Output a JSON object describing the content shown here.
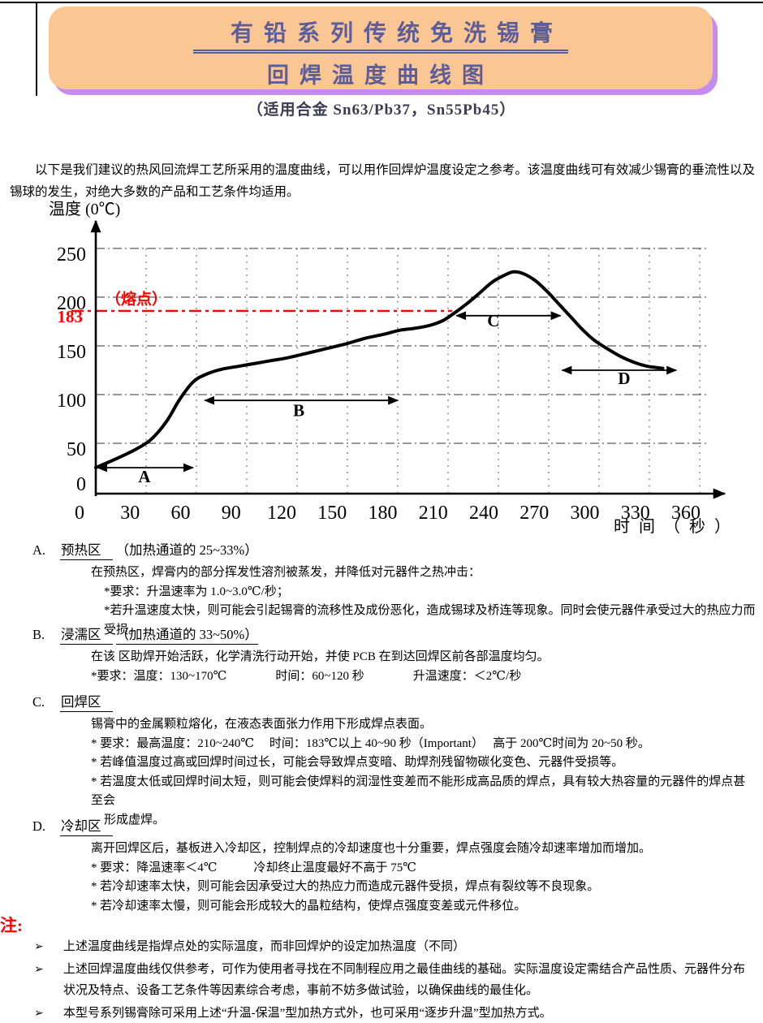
{
  "banner": {
    "title1_bold": "有铅",
    "title1_rest": "系列传统免洗锡膏",
    "title2": "回焊温度曲线图",
    "bg_color": "#FAC694",
    "shadow_color": "#C58BEF",
    "text_color": "#5D5D99"
  },
  "subtitle": "（适用合金 Sn63/Pb37，Sn55Pb45）",
  "intro": "以下是我们建议的热风回流焊工艺所采用的温度曲线，可以用作回焊炉温度设定之参考。该温度曲线可有效减少锡膏的垂流性以及锡球的发生，对绝大多数的产品和工艺条件均适用。",
  "chart_data": {
    "type": "line",
    "y_axis_title": "温度 (0℃)",
    "x_axis_title": "时 间 （ 秒 ）",
    "xlim": [
      0,
      380
    ],
    "ylim": [
      0,
      265
    ],
    "grid": {
      "h_lines": [
        50,
        100,
        150,
        200,
        250
      ],
      "v_interval": 30
    },
    "x_ticks": [
      0,
      30,
      60,
      90,
      120,
      150,
      180,
      210,
      240,
      270,
      300,
      330,
      360
    ],
    "y_ticks": [
      250,
      200,
      150,
      100,
      50,
      0
    ],
    "melting_point": {
      "value": 183,
      "label": "183",
      "annotation": "（熔点）",
      "color": "#FF0000"
    },
    "series": [
      {
        "name": "回焊温度曲线",
        "points": [
          [
            0,
            25
          ],
          [
            12,
            34
          ],
          [
            24,
            44
          ],
          [
            33,
            54
          ],
          [
            42,
            72
          ],
          [
            50,
            95
          ],
          [
            58,
            113
          ],
          [
            66,
            121
          ],
          [
            75,
            126
          ],
          [
            85,
            129
          ],
          [
            95,
            132
          ],
          [
            105,
            135
          ],
          [
            115,
            138
          ],
          [
            125,
            142
          ],
          [
            137,
            147
          ],
          [
            149,
            152
          ],
          [
            161,
            158
          ],
          [
            172,
            162
          ],
          [
            181,
            166
          ],
          [
            190,
            168
          ],
          [
            199,
            171
          ],
          [
            207,
            176
          ],
          [
            214,
            184
          ],
          [
            221,
            193
          ],
          [
            228,
            203
          ],
          [
            236,
            215
          ],
          [
            243,
            222
          ],
          [
            249,
            226
          ],
          [
            255,
            224
          ],
          [
            262,
            217
          ],
          [
            269,
            206
          ],
          [
            276,
            193
          ],
          [
            283,
            180
          ],
          [
            290,
            167
          ],
          [
            297,
            156
          ],
          [
            305,
            147
          ],
          [
            313,
            139
          ],
          [
            321,
            133
          ],
          [
            329,
            129
          ],
          [
            338,
            127
          ]
        ]
      }
    ],
    "zones": [
      {
        "label": "A",
        "from": 1,
        "to": 58,
        "arrow_temp": 25,
        "label_x": 29,
        "label_temp": 10
      },
      {
        "label": "B",
        "from": 65,
        "to": 180,
        "arrow_temp": 94,
        "label_x": 121,
        "label_temp": 78
      },
      {
        "label": "C",
        "from": 215,
        "to": 277,
        "arrow_temp": 181,
        "label_x": 237,
        "label_temp": 170
      },
      {
        "label": "D",
        "from": 278,
        "to": 346,
        "arrow_temp": 125,
        "label_x": 315,
        "label_temp": 111
      }
    ]
  },
  "sections": [
    {
      "id": "A",
      "label": "A.",
      "title": "预热区",
      "suffix": "（加热通道的 25~33%）",
      "suffix_underline": false,
      "lines": [
        {
          "indent": 1,
          "text": "在预热区，焊膏内的部分挥发性溶剂被蒸发，并降低对元器件之热冲击："
        },
        {
          "indent": 2,
          "text": "*要求：升温速率为 1.0~3.0℃/秒；"
        },
        {
          "indent": 2,
          "text": "*若升温速度太快，则可能会引起锡膏的流移性及成份恶化，造成锡球及桥连等现象。同时会使元器件承受过大的热应力而受损。"
        }
      ]
    },
    {
      "id": "B",
      "label": "B.",
      "title": "浸濡区",
      "suffix": "（加热通道的 33~50%）",
      "suffix_underline": true,
      "lines": [
        {
          "indent": 1,
          "text": "在该 区助焊开始活跃，化学清洗行动开始，并使 PCB 在到达回焊区前各部温度均匀。"
        },
        {
          "indent": 1,
          "text": "*要求：温度：130~170℃　　　　时间：60~120 秒　　　　升温速度：＜2℃/秒"
        }
      ]
    },
    {
      "id": "C",
      "label": "C.",
      "title": "回焊区",
      "suffix": "",
      "suffix_underline": false,
      "lines": [
        {
          "indent": 1,
          "text": "锡膏中的金属颗粒熔化，在液态表面张力作用下形成焊点表面。"
        },
        {
          "indent": 1,
          "text": "* 要求：最高温度：210~240℃　 时间：183℃以上 40~90 秒（Important）　 高于 200℃时间为 20~50 秒。"
        },
        {
          "indent": 1,
          "text": "* 若峰值温度过高或回焊时间过长，可能会导致焊点变暗、助焊剂残留物碳化变色、元器件受损等。"
        },
        {
          "indent": 1,
          "text": "* 若温度太低或回焊时间太短，则可能会使焊料的润湿性变差而不能形成高品质的焊点，具有较大热容量的元器件的焊点甚至会"
        },
        {
          "indent": 2,
          "text": "形成虚焊。"
        }
      ]
    },
    {
      "id": "D",
      "label": "D.",
      "title": "冷却区",
      "suffix": "",
      "suffix_underline": false,
      "lines": [
        {
          "indent": 1,
          "text": "离开回焊区后，基板进入冷却区，控制焊点的冷却速度也十分重要，焊点强度会随冷却速率增加而增加。"
        },
        {
          "indent": 1,
          "text": "* 要求：降温速率＜4℃　　　冷却终止温度最好不高于 75℃"
        },
        {
          "indent": 1,
          "text": "* 若冷却速率太快，则可能会因承受过大的热应力而造成元器件受损，焊点有裂纹等不良现象。"
        },
        {
          "indent": 1,
          "text": "* 若冷却速率太慢，则可能会形成较大的晶粒结构，使焊点强度变差或元件移位。"
        }
      ]
    }
  ],
  "notes": {
    "label": "注:",
    "items": [
      "上述温度曲线是指焊点处的实际温度，而非回焊炉的设定加热温度（不同）",
      "上述回焊温度曲线仅供参考，可作为使用者寻找在不同制程应用之最佳曲线的基础。实际温度设定需结合产品性质、元器件分布状况及特点、设备工艺条件等因素综合考虑，事前不妨多做试验，以确保曲线的最佳化。",
      "本型号系列锡膏除可采用上述“升温-保温”型加热方式外，也可采用“逐步升温”型加热方式。"
    ]
  }
}
